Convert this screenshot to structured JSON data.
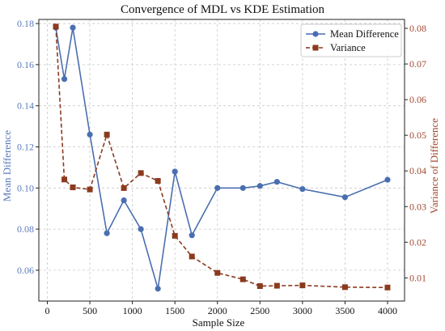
{
  "chart_data": {
    "type": "line",
    "title": "Convergence of MDL vs KDE Estimation",
    "xlabel": "Sample Size",
    "ylabel_left": "Mean Difference",
    "ylabel_right": "Variance of Difference",
    "xlim": [
      -100,
      4200
    ],
    "ylim_left": [
      0.045,
      0.182
    ],
    "ylim_right": [
      0.0035,
      0.0825
    ],
    "x_ticks": [
      0,
      500,
      1000,
      1500,
      2000,
      2500,
      3000,
      3500,
      4000
    ],
    "y_ticks_left": [
      0.06,
      0.08,
      0.1,
      0.12,
      0.14,
      0.16,
      0.18
    ],
    "y_ticks_right": [
      0.01,
      0.02,
      0.03,
      0.04,
      0.05,
      0.06,
      0.07,
      0.08
    ],
    "grid": true,
    "legend_position": "top-right",
    "x": [
      100,
      200,
      300,
      500,
      700,
      900,
      1100,
      1300,
      1500,
      1700,
      2000,
      2300,
      2500,
      2700,
      3000,
      3500,
      4000
    ],
    "series": [
      {
        "name": "Mean Difference",
        "axis": "left",
        "color": "#4a6fb0",
        "marker": "circle",
        "line_style": "solid",
        "values": [
          0.178,
          0.153,
          0.178,
          0.126,
          0.078,
          0.094,
          0.08,
          0.051,
          0.108,
          0.077,
          0.1,
          0.1,
          0.101,
          0.103,
          0.0995,
          0.0955,
          0.104
        ]
      },
      {
        "name": "Variance",
        "axis": "right",
        "color": "#8b3a1e",
        "marker": "square",
        "line_style": "dashed",
        "values": [
          0.0805,
          0.0376,
          0.0354,
          0.0348,
          0.0502,
          0.0352,
          0.0394,
          0.0372,
          0.0218,
          0.016,
          0.0114,
          0.0096,
          0.0077,
          0.0078,
          0.0079,
          0.0074,
          0.0073
        ]
      }
    ],
    "colors": {
      "left_axis": "#5a7bc0",
      "right_axis": "#a04a30"
    }
  }
}
